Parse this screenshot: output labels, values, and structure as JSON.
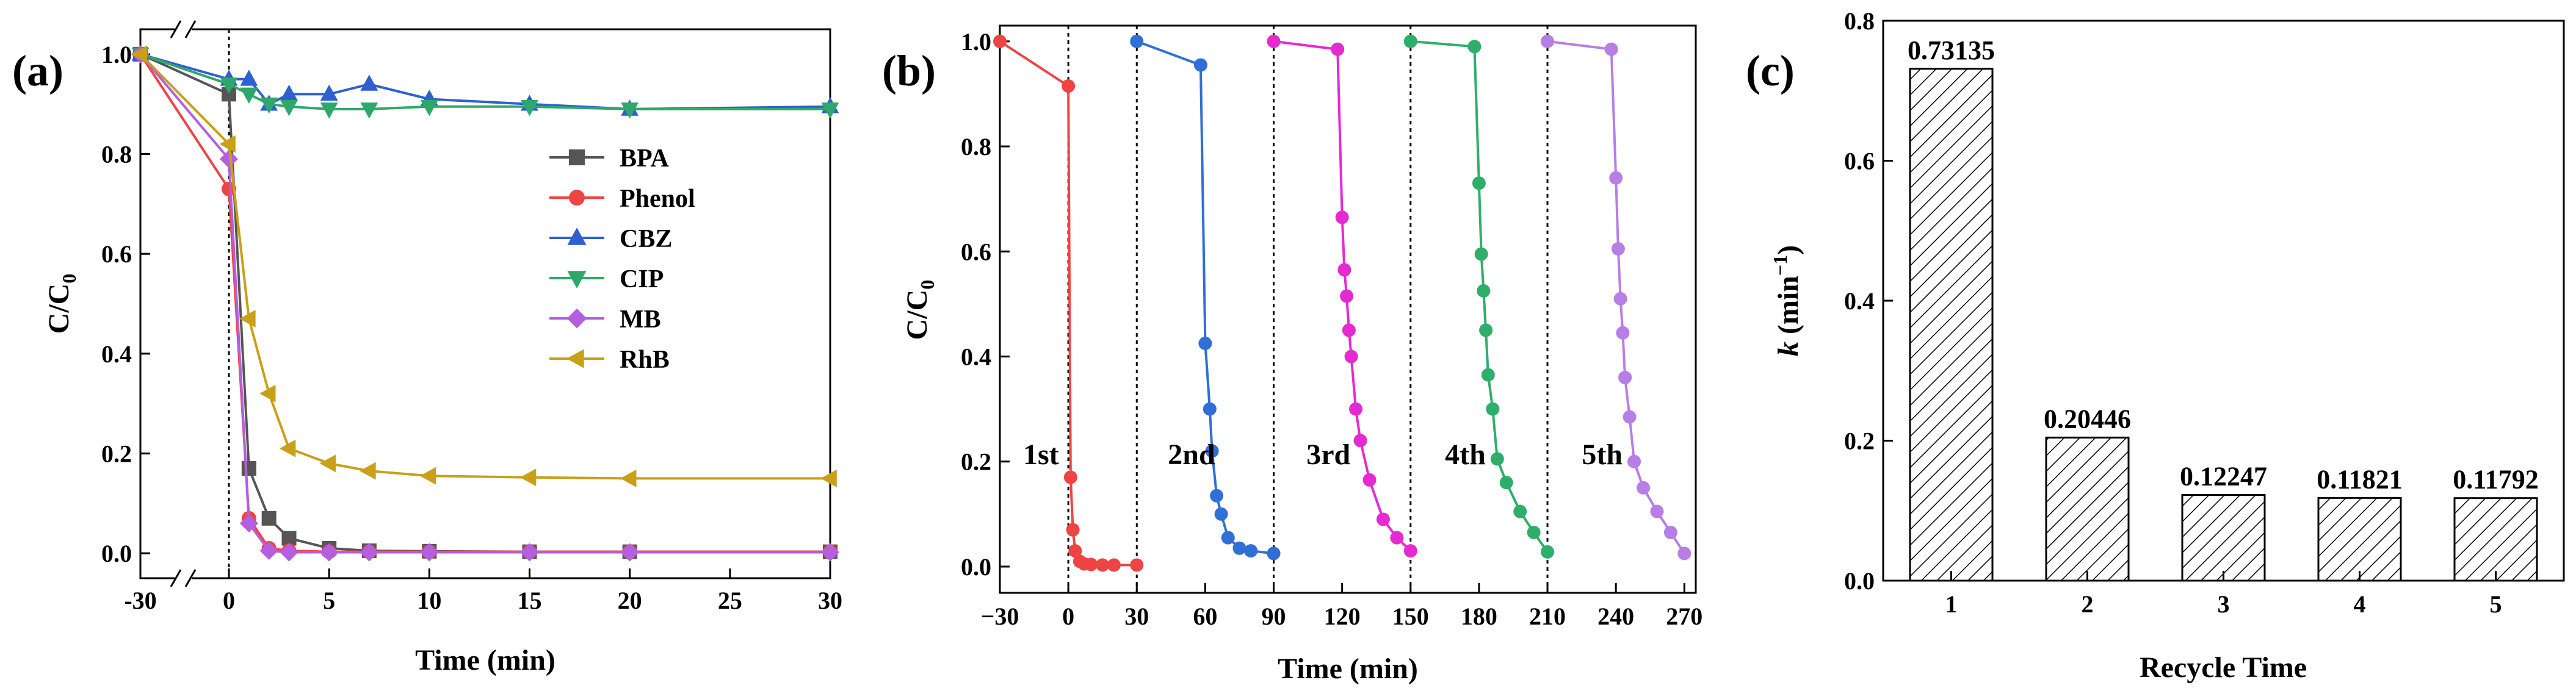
{
  "chart_data": [
    {
      "panel": "(a)",
      "type": "line",
      "xlabel": "Time (min)",
      "ylabel": "C/C0",
      "xlim": [
        -30,
        30
      ],
      "ylim": [
        -0.05,
        1.05
      ],
      "xticks": [
        "-30",
        "0",
        "5",
        "10",
        "15",
        "20",
        "25",
        "30"
      ],
      "yticks": [
        "0.0",
        "0.2",
        "0.4",
        "0.6",
        "0.8",
        "1.0"
      ],
      "axis_break": true,
      "legend_position": "right-middle",
      "series": [
        {
          "name": "BPA",
          "color": "#555555",
          "marker": "square",
          "x": [
            -30,
            0,
            1,
            2,
            3,
            5,
            7,
            10,
            15,
            20,
            30
          ],
          "y": [
            1.0,
            0.92,
            0.17,
            0.07,
            0.03,
            0.01,
            0.005,
            0.004,
            0.003,
            0.003,
            0.003
          ]
        },
        {
          "name": "Phenol",
          "color": "#ef4444",
          "marker": "circle",
          "x": [
            -30,
            0,
            1,
            2,
            3,
            5,
            7,
            10,
            15,
            20,
            30
          ],
          "y": [
            1.0,
            0.73,
            0.07,
            0.01,
            0.005,
            0.003,
            0.003,
            0.003,
            0.003,
            0.003,
            0.003
          ]
        },
        {
          "name": "CBZ",
          "color": "#2f5fd1",
          "marker": "triangle-up",
          "x": [
            -30,
            0,
            1,
            2,
            3,
            5,
            7,
            10,
            15,
            20,
            30
          ],
          "y": [
            1.0,
            0.95,
            0.95,
            0.9,
            0.92,
            0.92,
            0.94,
            0.91,
            0.9,
            0.89,
            0.895
          ]
        },
        {
          "name": "CIP",
          "color": "#2ea86a",
          "marker": "triangle-down",
          "x": [
            -30,
            0,
            1,
            2,
            3,
            5,
            7,
            10,
            15,
            20,
            30
          ],
          "y": [
            1.0,
            0.94,
            0.92,
            0.9,
            0.895,
            0.89,
            0.89,
            0.895,
            0.895,
            0.89,
            0.89
          ]
        },
        {
          "name": "MB",
          "color": "#b45ee0",
          "marker": "diamond",
          "x": [
            -30,
            0,
            1,
            2,
            3,
            5,
            7,
            10,
            15,
            20,
            30
          ],
          "y": [
            1.0,
            0.79,
            0.06,
            0.005,
            0.002,
            0.002,
            0.002,
            0.002,
            0.002,
            0.002,
            0.002
          ]
        },
        {
          "name": "RhB",
          "color": "#c9a018",
          "marker": "triangle-left",
          "x": [
            -30,
            0,
            1,
            2,
            3,
            5,
            7,
            10,
            15,
            20,
            30
          ],
          "y": [
            1.0,
            0.82,
            0.47,
            0.32,
            0.21,
            0.18,
            0.165,
            0.155,
            0.152,
            0.15,
            0.15
          ]
        }
      ]
    },
    {
      "panel": "(b)",
      "type": "line",
      "xlabel": "Time (min)",
      "ylabel": "C/C0",
      "xlim": [
        -30,
        275
      ],
      "ylim": [
        -0.05,
        1.03
      ],
      "xticks": [
        -30,
        0,
        30,
        60,
        90,
        120,
        150,
        180,
        210,
        240,
        270
      ],
      "yticks": [
        "0.0",
        "0.2",
        "0.4",
        "0.6",
        "0.8",
        "1.0"
      ],
      "dividers": [
        0,
        30,
        90,
        150,
        210
      ],
      "cycle_labels": [
        "1st",
        "2nd",
        "3rd",
        "4th",
        "5th"
      ],
      "series": [
        {
          "name": "1st",
          "color": "#ef4444",
          "x": [
            -30,
            0,
            1,
            2,
            3,
            5,
            7,
            10,
            15,
            20,
            30
          ],
          "y": [
            1.0,
            0.915,
            0.17,
            0.07,
            0.03,
            0.01,
            0.005,
            0.004,
            0.003,
            0.003,
            0.003
          ]
        },
        {
          "name": "2nd",
          "color": "#2f6fd6",
          "x": [
            30,
            58,
            60,
            62,
            63,
            65,
            67,
            70,
            75,
            80,
            90
          ],
          "y": [
            1.0,
            0.955,
            0.425,
            0.3,
            0.22,
            0.135,
            0.1,
            0.055,
            0.035,
            0.03,
            0.025
          ]
        },
        {
          "name": "3rd",
          "color": "#e62ad2",
          "x": [
            90,
            118,
            120,
            121,
            122,
            123,
            124,
            126,
            128,
            132,
            138,
            144,
            150
          ],
          "y": [
            1.0,
            0.985,
            0.665,
            0.565,
            0.515,
            0.45,
            0.4,
            0.3,
            0.24,
            0.165,
            0.09,
            0.055,
            0.03
          ]
        },
        {
          "name": "4th",
          "color": "#2fae6a",
          "x": [
            150,
            178,
            180,
            181,
            182,
            183,
            184,
            186,
            188,
            192,
            198,
            204,
            210
          ],
          "y": [
            1.0,
            0.99,
            0.73,
            0.595,
            0.525,
            0.45,
            0.365,
            0.3,
            0.205,
            0.16,
            0.105,
            0.065,
            0.028
          ]
        },
        {
          "name": "5th",
          "color": "#b77ee6",
          "x": [
            210,
            238,
            240,
            241,
            242,
            243,
            244,
            246,
            248,
            252,
            258,
            264,
            270
          ],
          "y": [
            1.0,
            0.985,
            0.74,
            0.605,
            0.51,
            0.445,
            0.36,
            0.285,
            0.2,
            0.15,
            0.105,
            0.065,
            0.025
          ]
        }
      ]
    },
    {
      "panel": "(c)",
      "type": "bar",
      "xlabel": "Recycle Time",
      "ylabel": "k (min⁻¹)",
      "ylabel_var": "k",
      "ylabel_unit": " (min",
      "ylabel_sup": "−1",
      "ylabel_close": ")",
      "ylim": [
        0,
        0.8
      ],
      "yticks": [
        "0.0",
        "0.2",
        "0.4",
        "0.6",
        "0.8"
      ],
      "categories": [
        "1",
        "2",
        "3",
        "4",
        "5"
      ],
      "values": [
        0.73135,
        0.20446,
        0.12247,
        0.11821,
        0.11792
      ],
      "value_labels": [
        "0.73135",
        "0.20446",
        "0.12247",
        "0.11821",
        "0.11792"
      ],
      "fill": "hatched"
    }
  ]
}
